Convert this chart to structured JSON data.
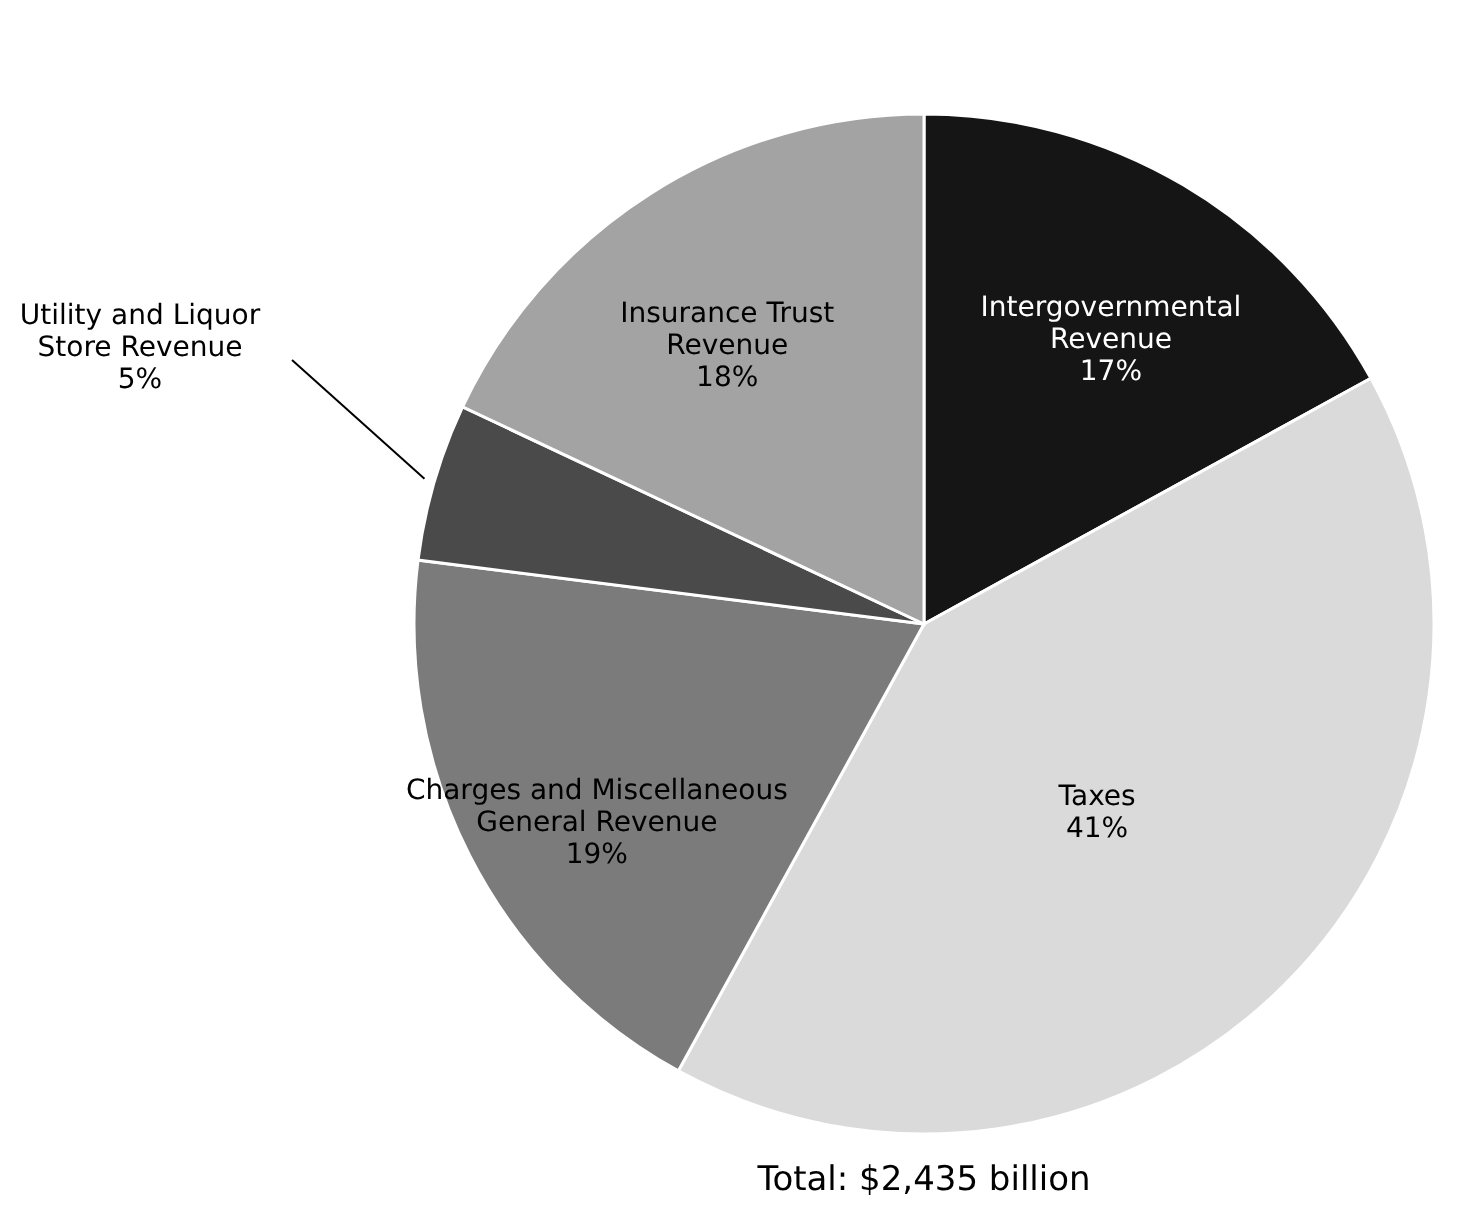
{
  "chart_data": {
    "type": "pie",
    "categories": [
      "Intergovernmental\nRevenue",
      "Taxes",
      "Charges and Miscellaneous\nGeneral Revenue",
      "Utility and Liquor\nStore Revenue",
      "Insurance Trust\nRevenue"
    ],
    "values": [
      17,
      41,
      19,
      5,
      18
    ],
    "value_labels": [
      "17%",
      "41%",
      "19%",
      "5%",
      "18%"
    ],
    "colors": [
      "#151515",
      "#dadada",
      "#7b7b7b",
      "#4a4a4a",
      "#a3a3a3"
    ],
    "annotations": [
      "Total: $2,435 billion"
    ]
  }
}
